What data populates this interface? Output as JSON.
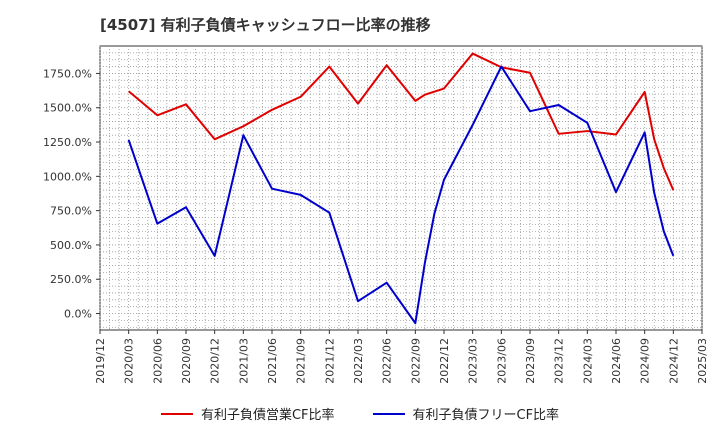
{
  "chart_data": {
    "type": "line",
    "title": "[4507]  有利子負債キャッシュフロー比率の推移",
    "xlabel": "",
    "ylabel": "",
    "x_ticks": [
      "2019/12",
      "2020/03",
      "2020/06",
      "2020/09",
      "2020/12",
      "2021/03",
      "2021/06",
      "2021/09",
      "2021/12",
      "2022/03",
      "2022/06",
      "2022/09",
      "2022/12",
      "2023/03",
      "2023/06",
      "2023/09",
      "2023/12",
      "2024/03",
      "2024/06",
      "2024/09",
      "2024/12",
      "2025/03"
    ],
    "y_ticks": [
      "0.0%",
      "250.0%",
      "500.0%",
      "750.0%",
      "1000.0%",
      "1250.0%",
      "1500.0%",
      "1750.0%"
    ],
    "y_tick_values": [
      0,
      250,
      500,
      750,
      1000,
      1250,
      1500,
      1750
    ],
    "ylim": [
      -120,
      1950
    ],
    "grid": true,
    "legend_position": "bottom",
    "series": [
      {
        "name": "有利子負債営業CF比率",
        "color": "#e00000",
        "points": [
          [
            "2020/03",
            1620
          ],
          [
            "2020/06",
            1445
          ],
          [
            "2020/09",
            1525
          ],
          [
            "2020/12",
            1270
          ],
          [
            "2021/03",
            1365
          ],
          [
            "2021/06",
            1485
          ],
          [
            "2021/09",
            1580
          ],
          [
            "2021/12",
            1800
          ],
          [
            "2022/03",
            1530
          ],
          [
            "2022/06",
            1810
          ],
          [
            "2022/09",
            1550
          ],
          [
            "2022/10",
            1595
          ],
          [
            "2022/12",
            1640
          ],
          [
            "2023/03",
            1895
          ],
          [
            "2023/06",
            1795
          ],
          [
            "2023/09",
            1755
          ],
          [
            "2023/12",
            1310
          ],
          [
            "2024/03",
            1330
          ],
          [
            "2024/06",
            1305
          ],
          [
            "2024/09",
            1615
          ],
          [
            "2024/10",
            1270
          ],
          [
            "2024/11",
            1060
          ],
          [
            "2024/12",
            900
          ]
        ]
      },
      {
        "name": "有利子負債フリーCF比率",
        "color": "#0000cc",
        "points": [
          [
            "2020/03",
            1265
          ],
          [
            "2020/06",
            655
          ],
          [
            "2020/09",
            775
          ],
          [
            "2020/12",
            420
          ],
          [
            "2021/03",
            1300
          ],
          [
            "2021/06",
            910
          ],
          [
            "2021/09",
            865
          ],
          [
            "2021/12",
            735
          ],
          [
            "2022/03",
            90
          ],
          [
            "2022/06",
            225
          ],
          [
            "2022/09",
            -70
          ],
          [
            "2022/10",
            370
          ],
          [
            "2022/11",
            730
          ],
          [
            "2022/12",
            975
          ],
          [
            "2023/03",
            1375
          ],
          [
            "2023/06",
            1800
          ],
          [
            "2023/09",
            1475
          ],
          [
            "2023/12",
            1520
          ],
          [
            "2024/03",
            1390
          ],
          [
            "2024/06",
            885
          ],
          [
            "2024/09",
            1320
          ],
          [
            "2024/10",
            880
          ],
          [
            "2024/11",
            600
          ],
          [
            "2024/12",
            420
          ]
        ]
      }
    ]
  }
}
